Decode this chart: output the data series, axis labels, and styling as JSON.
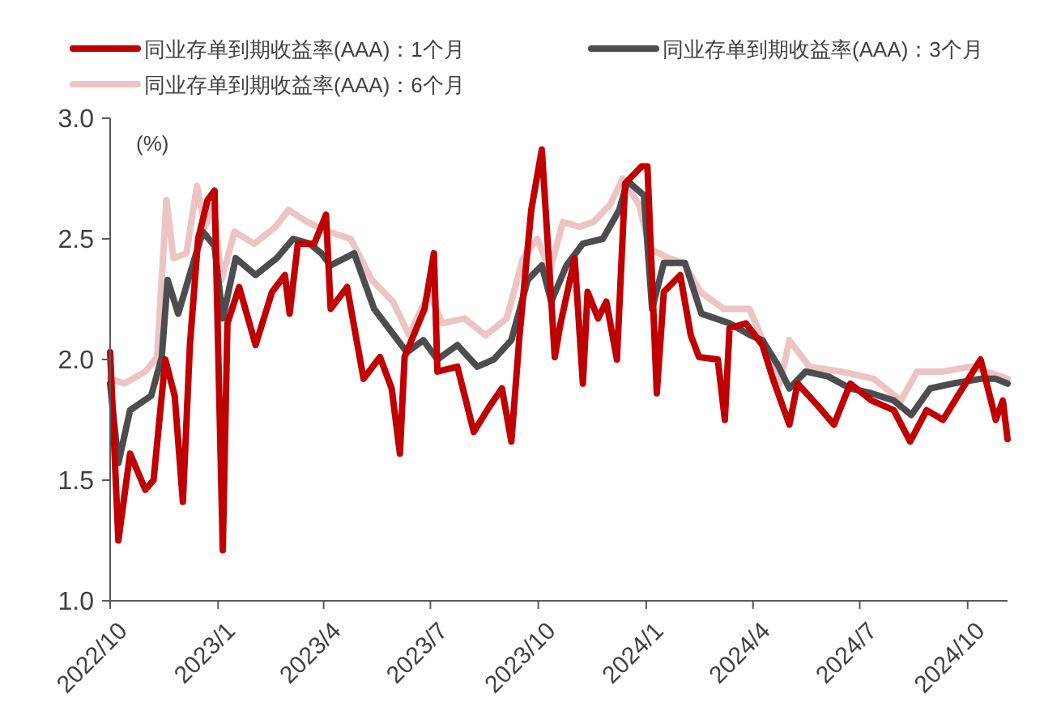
{
  "chart_data": {
    "type": "line",
    "ylabel": "(%)",
    "legend": "top",
    "line_style": "solid",
    "grid": false,
    "xlim": [
      "2022-10-01",
      "2024-11-04"
    ],
    "xticks": [
      {
        "value": "2022-10-01",
        "label": "2022/10"
      },
      {
        "value": "2023-01-01",
        "label": "2023/1"
      },
      {
        "value": "2023-04-01",
        "label": "2023/4"
      },
      {
        "value": "2023-07-01",
        "label": "2023/7"
      },
      {
        "value": "2023-10-01",
        "label": "2023/10"
      },
      {
        "value": "2024-01-01",
        "label": "2024/1"
      },
      {
        "value": "2024-04-01",
        "label": "2024/4"
      },
      {
        "value": "2024-07-01",
        "label": "2024/7"
      },
      {
        "value": "2024-10-01",
        "label": "2024/10"
      }
    ],
    "ylim": [
      1,
      3
    ],
    "yticks": [
      {
        "value": 1,
        "label": "1.0"
      },
      {
        "value": 1.5,
        "label": "1.5"
      },
      {
        "value": 2,
        "label": "2.0"
      },
      {
        "value": 2.5,
        "label": "2.5"
      },
      {
        "value": 3,
        "label": "3.0"
      }
    ],
    "series": [
      {
        "name": "同业存单到期收益率(AAA)：1个月",
        "color": "#c00000",
        "x": [
          "2022-10-01",
          "2022-10-08",
          "2022-10-18",
          "2022-10-31",
          "2022-11-07",
          "2022-11-17",
          "2022-11-25",
          "2022-12-02",
          "2022-12-08",
          "2022-12-15",
          "2022-12-23",
          "2022-12-29",
          "2023-01-05",
          "2023-01-09",
          "2023-01-19",
          "2023-02-02",
          "2023-02-16",
          "2023-02-27",
          "2023-03-03",
          "2023-03-10",
          "2023-03-24",
          "2023-04-03",
          "2023-04-07",
          "2023-04-21",
          "2023-05-05",
          "2023-05-19",
          "2023-05-29",
          "2023-06-05",
          "2023-06-09",
          "2023-06-26",
          "2023-07-04",
          "2023-07-07",
          "2023-07-24",
          "2023-08-07",
          "2023-08-21",
          "2023-08-31",
          "2023-09-08",
          "2023-09-15",
          "2023-09-25",
          "2023-10-04",
          "2023-10-11",
          "2023-10-15",
          "2023-10-20",
          "2023-11-01",
          "2023-11-08",
          "2023-11-12",
          "2023-11-21",
          "2023-11-28",
          "2023-12-07",
          "2023-12-14",
          "2023-12-28",
          "2024-01-02",
          "2024-01-10",
          "2024-01-16",
          "2024-01-30",
          "2024-02-08",
          "2024-02-15",
          "2024-03-02",
          "2024-03-08",
          "2024-03-12",
          "2024-03-26",
          "2024-04-09",
          "2024-04-18",
          "2024-05-02",
          "2024-05-09",
          "2024-05-26",
          "2024-06-09",
          "2024-06-23",
          "2024-07-11",
          "2024-07-30",
          "2024-08-13",
          "2024-08-27",
          "2024-09-10",
          "2024-09-24",
          "2024-10-12",
          "2024-10-25",
          "2024-10-31",
          "2024-11-04"
        ],
        "values": [
          2.03,
          1.25,
          1.61,
          1.46,
          1.5,
          2.0,
          1.85,
          1.41,
          2.06,
          2.5,
          2.66,
          2.7,
          1.21,
          2.15,
          2.3,
          2.06,
          2.28,
          2.35,
          2.19,
          2.48,
          2.48,
          2.6,
          2.21,
          2.3,
          1.92,
          2.01,
          1.88,
          1.61,
          2.01,
          2.21,
          2.44,
          1.95,
          1.97,
          1.7,
          1.81,
          1.88,
          1.66,
          2.1,
          2.62,
          2.87,
          2.33,
          2.01,
          2.15,
          2.42,
          1.9,
          2.28,
          2.17,
          2.24,
          2.0,
          2.73,
          2.8,
          2.8,
          1.86,
          2.28,
          2.35,
          2.1,
          2.01,
          2.0,
          1.75,
          2.13,
          2.15,
          2.06,
          1.92,
          1.73,
          1.9,
          1.81,
          1.73,
          1.9,
          1.83,
          1.79,
          1.66,
          1.79,
          1.75,
          1.86,
          2.0,
          1.75,
          1.83,
          1.67
        ]
      },
      {
        "name": "同业存单到期收益率(AAA)：3个月",
        "color": "#4d4d4f",
        "x": [
          "2022-10-01",
          "2022-10-08",
          "2022-10-18",
          "2022-11-05",
          "2022-11-14",
          "2022-11-19",
          "2022-11-28",
          "2022-12-09",
          "2022-12-19",
          "2022-12-29",
          "2023-01-05",
          "2023-01-16",
          "2023-02-02",
          "2023-02-20",
          "2023-03-06",
          "2023-03-20",
          "2023-03-30",
          "2023-04-07",
          "2023-04-27",
          "2023-05-14",
          "2023-05-28",
          "2023-06-11",
          "2023-06-25",
          "2023-07-07",
          "2023-07-24",
          "2023-08-10",
          "2023-08-24",
          "2023-09-08",
          "2023-09-22",
          "2023-10-04",
          "2023-10-12",
          "2023-10-25",
          "2023-11-08",
          "2023-11-25",
          "2023-12-09",
          "2023-12-16",
          "2023-12-30",
          "2024-01-06",
          "2024-01-16",
          "2024-02-03",
          "2024-02-17",
          "2024-03-12",
          "2024-03-30",
          "2024-04-09",
          "2024-04-23",
          "2024-05-02",
          "2024-05-16",
          "2024-06-04",
          "2024-06-23",
          "2024-07-11",
          "2024-07-30",
          "2024-08-14",
          "2024-08-30",
          "2024-09-18",
          "2024-10-12",
          "2024-10-25",
          "2024-11-04"
        ],
        "values": [
          1.9,
          1.57,
          1.79,
          1.85,
          2.01,
          2.33,
          2.19,
          2.37,
          2.53,
          2.47,
          2.17,
          2.42,
          2.35,
          2.42,
          2.5,
          2.48,
          2.44,
          2.39,
          2.44,
          2.21,
          2.12,
          2.03,
          2.08,
          2.0,
          2.06,
          1.97,
          2.0,
          2.08,
          2.33,
          2.39,
          2.24,
          2.39,
          2.48,
          2.5,
          2.62,
          2.74,
          2.68,
          2.21,
          2.4,
          2.4,
          2.19,
          2.15,
          2.1,
          2.08,
          1.97,
          1.88,
          1.95,
          1.93,
          1.88,
          1.86,
          1.83,
          1.77,
          1.88,
          1.9,
          1.92,
          1.92,
          1.9
        ]
      },
      {
        "name": "同业存单到期收益率(AAA)：6个月",
        "color": "#ecc4c4",
        "x": [
          "2022-10-01",
          "2022-10-13",
          "2022-10-31",
          "2022-11-10",
          "2022-11-18",
          "2022-11-24",
          "2022-12-05",
          "2022-12-14",
          "2022-12-21",
          "2022-12-28",
          "2023-01-04",
          "2023-01-15",
          "2023-02-01",
          "2023-02-19",
          "2023-03-02",
          "2023-03-18",
          "2023-04-05",
          "2023-04-24",
          "2023-05-12",
          "2023-05-30",
          "2023-06-13",
          "2023-06-30",
          "2023-07-11",
          "2023-07-30",
          "2023-08-17",
          "2023-09-04",
          "2023-09-18",
          "2023-09-30",
          "2023-10-11",
          "2023-10-22",
          "2023-11-05",
          "2023-11-17",
          "2023-12-01",
          "2023-12-12",
          "2023-12-26",
          "2024-01-04",
          "2024-01-20",
          "2024-02-02",
          "2024-02-16",
          "2024-03-07",
          "2024-03-29",
          "2024-04-11",
          "2024-04-24",
          "2024-05-02",
          "2024-05-19",
          "2024-06-15",
          "2024-07-13",
          "2024-08-05",
          "2024-08-19",
          "2024-09-10",
          "2024-10-03",
          "2024-10-17",
          "2024-11-04"
        ],
        "values": [
          1.92,
          1.9,
          1.95,
          2.01,
          2.66,
          2.42,
          2.44,
          2.72,
          2.55,
          2.64,
          2.33,
          2.53,
          2.48,
          2.55,
          2.62,
          2.57,
          2.53,
          2.5,
          2.33,
          2.24,
          2.1,
          2.28,
          2.15,
          2.17,
          2.1,
          2.17,
          2.42,
          2.5,
          2.37,
          2.57,
          2.55,
          2.57,
          2.64,
          2.75,
          2.64,
          2.46,
          2.42,
          2.4,
          2.28,
          2.21,
          2.21,
          2.06,
          1.9,
          2.08,
          1.97,
          1.95,
          1.92,
          1.83,
          1.95,
          1.95,
          1.97,
          1.95,
          1.92
        ]
      }
    ]
  }
}
